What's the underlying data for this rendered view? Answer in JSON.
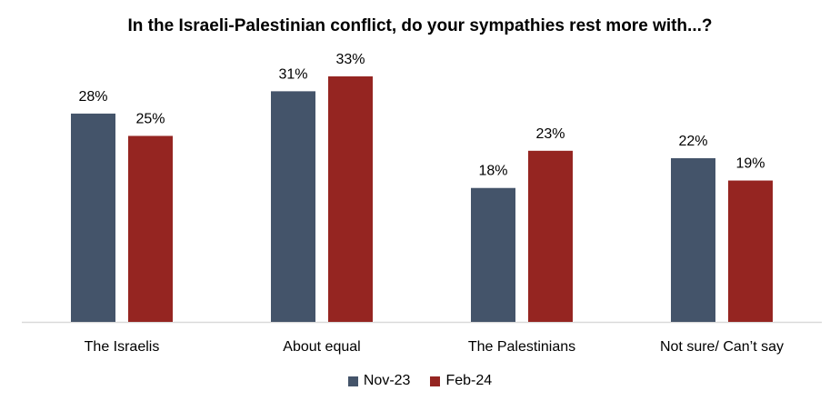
{
  "chart_data": {
    "type": "bar",
    "title": "In the Israeli-Palestinian conflict, do your sympathies rest more with...?",
    "categories": [
      "The Israelis",
      "About equal",
      "The Palestinians",
      "Not sure/ Can’t say"
    ],
    "series": [
      {
        "name": "Nov-23",
        "color": "#44546a",
        "values": [
          28,
          31,
          18,
          22
        ],
        "labels": [
          "28%",
          "31%",
          "18%",
          "22%"
        ]
      },
      {
        "name": "Feb-24",
        "color": "#952521",
        "values": [
          25,
          33,
          23,
          19
        ],
        "labels": [
          "25%",
          "33%",
          "23%",
          "19%"
        ]
      }
    ],
    "ylim": [
      0,
      33
    ],
    "xlabel": "",
    "ylabel": "",
    "grid": false,
    "legend_position": "bottom"
  }
}
